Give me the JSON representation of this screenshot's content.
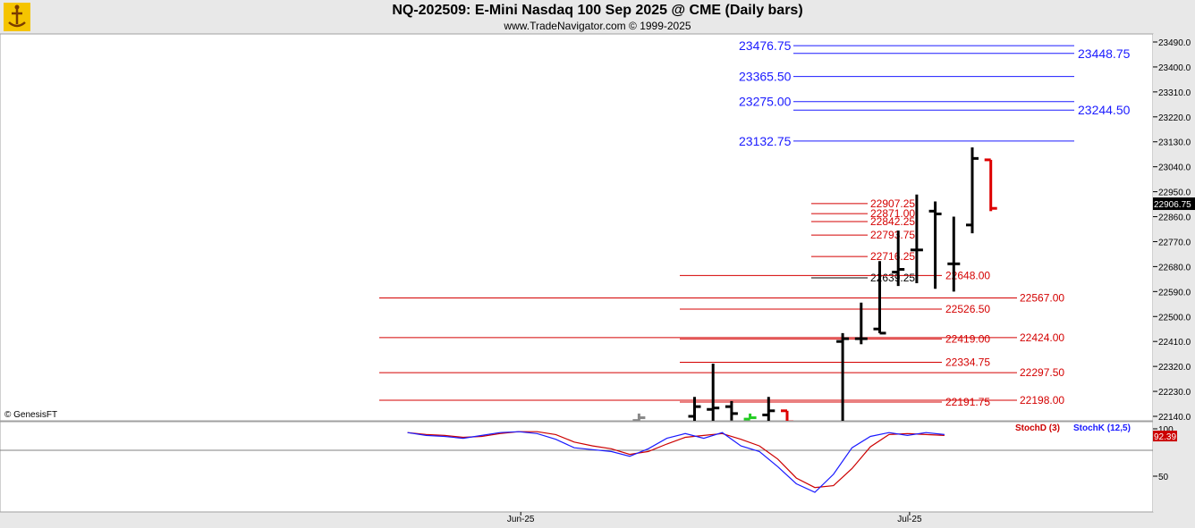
{
  "header": {
    "title": "NQ-202509:  E-Mini Nasdaq 100 Sep 2025 @ CME  (Daily bars)",
    "subtitle": "www.TradeNavigator.com © 1999-2025"
  },
  "watermark": "© GenesisFT",
  "chart_data": [
    {
      "type": "bar",
      "subtype": "ohlc",
      "price_scale": {
        "ticks": [
          22140,
          22230,
          22320,
          22410,
          22500,
          22590,
          22680,
          22770,
          22860,
          22950,
          23040,
          23130,
          23220,
          23310,
          23400,
          23490
        ],
        "tick_labels": [
          "22140.0",
          "22230.0",
          "22320.0",
          "22410.0",
          "22500.0",
          "22590.0",
          "22680.0",
          "22770.0",
          "22860.0",
          "22950.0",
          "23040.0",
          "23130.0",
          "23220.0",
          "23310.0",
          "23400.0",
          "23490.0"
        ],
        "last_price": 22906.75,
        "last_price_label": "22906.75"
      },
      "x_labels": [
        {
          "label": "Jun-25",
          "bar": 6
        },
        {
          "label": "Jul-25",
          "bar": 27
        }
      ],
      "bars": [
        {
          "i": 12,
          "o": 22125,
          "h": 22150,
          "l": 22125,
          "c": 22135,
          "color": "#888888"
        },
        {
          "i": 15,
          "o": 22140,
          "h": 22210,
          "l": 22110,
          "c": 22175,
          "color": "#000000"
        },
        {
          "i": 16,
          "o": 22165,
          "h": 22330,
          "l": 22120,
          "c": 22170,
          "color": "#000000"
        },
        {
          "i": 17,
          "o": 22175,
          "h": 22195,
          "l": 22125,
          "c": 22150,
          "color": "#000000"
        },
        {
          "i": 18,
          "o": 22130,
          "h": 22150,
          "l": 22130,
          "c": 22135,
          "color": "#22cc22"
        },
        {
          "i": 19,
          "o": 22145,
          "h": 22210,
          "l": 22120,
          "c": 22160,
          "color": "#000000"
        },
        {
          "i": 20,
          "o": 22160,
          "h": 22160,
          "l": 22100,
          "c": 22120,
          "color": "#dd0000"
        },
        {
          "i": 23,
          "o": 22410,
          "h": 22440,
          "l": 22100,
          "c": 22420,
          "color": "#000000"
        },
        {
          "i": 24,
          "o": 22420,
          "h": 22550,
          "l": 22400,
          "c": 22420,
          "color": "#000000"
        },
        {
          "i": 25,
          "o": 22455,
          "h": 22700,
          "l": 22440,
          "c": 22440,
          "color": "#000000"
        },
        {
          "i": 26,
          "o": 22660,
          "h": 22810,
          "l": 22610,
          "c": 22670,
          "color": "#000000"
        },
        {
          "i": 27,
          "o": 22740,
          "h": 22940,
          "l": 22620,
          "c": 22740,
          "color": "#000000"
        },
        {
          "i": 28,
          "o": 22880,
          "h": 22915,
          "l": 22600,
          "c": 22870,
          "color": "#000000"
        },
        {
          "i": 29,
          "o": 22690,
          "h": 22860,
          "l": 22590,
          "c": 22690,
          "color": "#000000"
        },
        {
          "i": 30,
          "o": 22830,
          "h": 23110,
          "l": 22800,
          "c": 23070,
          "color": "#000000"
        },
        {
          "i": 31,
          "o": 23065,
          "h": 23065,
          "l": 22880,
          "c": 22890,
          "color": "#dd0000"
        }
      ],
      "levels_blue": [
        {
          "price": 23476.75,
          "label": "23476.75"
        },
        {
          "price": 23448.75,
          "label": "23448.75"
        },
        {
          "price": 23365.5,
          "label": "23365.50"
        },
        {
          "price": 23275.0,
          "label": "23275.00"
        },
        {
          "price": 23244.5,
          "label": "23244.50"
        },
        {
          "price": 23132.75,
          "label": "23132.75"
        }
      ],
      "levels_red": [
        {
          "price": 22907.25,
          "label": "22907.25"
        },
        {
          "price": 22871.0,
          "label": "22871.00"
        },
        {
          "price": 22842.25,
          "label": "22842.25"
        },
        {
          "price": 22793.75,
          "label": "22793.75"
        },
        {
          "price": 22716.25,
          "label": "22716.25"
        },
        {
          "price": 22639.25,
          "label": "22639.25"
        },
        {
          "price": 22648.0,
          "label": "22648.00"
        },
        {
          "price": 22567.0,
          "label": "22567.00"
        },
        {
          "price": 22526.5,
          "label": "22526.50"
        },
        {
          "price": 22424.0,
          "label": "22424.00"
        },
        {
          "price": 22419.0,
          "label": "22419.00"
        },
        {
          "price": 22334.75,
          "label": "22334.75"
        },
        {
          "price": 22297.5,
          "label": "22297.50"
        },
        {
          "price": 22198.0,
          "label": "22198.00"
        },
        {
          "price": 22191.75,
          "label": "22191.75"
        }
      ]
    },
    {
      "type": "line",
      "indicator": "Stochastic",
      "ticks": [
        {
          "value": 100,
          "label": "100"
        },
        {
          "value": 50,
          "label": "50"
        }
      ],
      "last_value": 92.39,
      "last_value_label": "92.39",
      "series": [
        {
          "name": "StochD (3)",
          "color": "#cc0000",
          "values": [
            [
              -0.5,
              96
            ],
            [
              0.5,
              94
            ],
            [
              1.5,
              93
            ],
            [
              2.5,
              91
            ],
            [
              3.5,
              92
            ],
            [
              4.5,
              95
            ],
            [
              5.5,
              97
            ],
            [
              6.5,
              97
            ],
            [
              7.5,
              94
            ],
            [
              8.5,
              86
            ],
            [
              9.5,
              82
            ],
            [
              10.5,
              79
            ],
            [
              11.5,
              73
            ],
            [
              12.5,
              76
            ],
            [
              13.5,
              84
            ],
            [
              14.5,
              91
            ],
            [
              15.5,
              93
            ],
            [
              16.5,
              95
            ],
            [
              17.5,
              89
            ],
            [
              18.5,
              82
            ],
            [
              19.5,
              68
            ],
            [
              20.5,
              48
            ],
            [
              21.5,
              38
            ],
            [
              22.5,
              40
            ],
            [
              23.5,
              58
            ],
            [
              24.5,
              81
            ],
            [
              25.5,
              94
            ],
            [
              26.5,
              95
            ],
            [
              27.5,
              94
            ],
            [
              28.5,
              93
            ]
          ]
        },
        {
          "name": "StochK (12,5)",
          "color": "#1a1aff",
          "values": [
            [
              -0.5,
              96
            ],
            [
              0.5,
              93
            ],
            [
              1.5,
              92
            ],
            [
              2.5,
              90
            ],
            [
              3.5,
              93
            ],
            [
              4.5,
              96
            ],
            [
              5.5,
              97
            ],
            [
              6.5,
              95
            ],
            [
              7.5,
              89
            ],
            [
              8.5,
              80
            ],
            [
              9.5,
              78
            ],
            [
              10.5,
              76
            ],
            [
              11.5,
              71
            ],
            [
              12.5,
              79
            ],
            [
              13.5,
              90
            ],
            [
              14.5,
              95
            ],
            [
              15.5,
              90
            ],
            [
              16.5,
              96
            ],
            [
              17.5,
              82
            ],
            [
              18.5,
              76
            ],
            [
              19.5,
              60
            ],
            [
              20.5,
              42
            ],
            [
              21.5,
              33
            ],
            [
              22.5,
              52
            ],
            [
              23.5,
              80
            ],
            [
              24.5,
              92
            ],
            [
              25.5,
              96
            ],
            [
              26.5,
              93
            ],
            [
              27.5,
              96
            ],
            [
              28.5,
              94
            ]
          ]
        }
      ]
    }
  ]
}
